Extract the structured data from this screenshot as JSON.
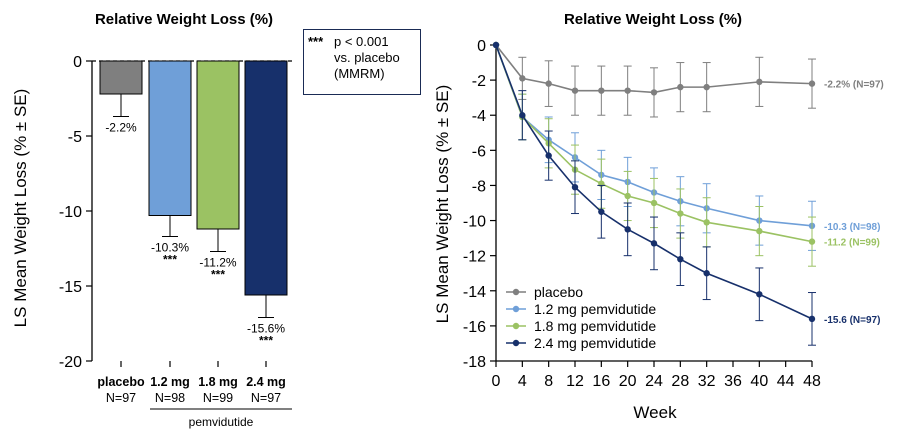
{
  "left_panel": {
    "sig_note": {
      "stars": "***",
      "lines": [
        "p < 0.001",
        "vs. placebo",
        "(MMRM)"
      ]
    },
    "group_label": "pemvidutide"
  },
  "chart_data": [
    {
      "type": "bar",
      "title": "Relative Weight Loss (%)",
      "ylabel": "LS Mean Weight Loss (% ± SE)",
      "ylim": [
        -20,
        0
      ],
      "yticks": [
        0,
        -5,
        -10,
        -15,
        -20
      ],
      "categories": [
        "placebo",
        "1.2 mg",
        "1.8 mg",
        "2.4 mg"
      ],
      "n_labels": [
        "N=97",
        "N=98",
        "N=99",
        "N=97"
      ],
      "values": [
        -2.2,
        -10.3,
        -11.2,
        -15.6
      ],
      "se": [
        1.5,
        1.4,
        1.5,
        1.5
      ],
      "value_labels": [
        "-2.2%",
        "-10.3%",
        "-11.2%",
        "-15.6%"
      ],
      "significance": [
        "",
        "***",
        "***",
        "***"
      ],
      "colors": [
        "#7f7f7f",
        "#6f9fd8",
        "#9bc263",
        "#17306b"
      ]
    },
    {
      "type": "line",
      "title": "Relative Weight Loss (%)",
      "xlabel": "Week",
      "ylabel": "LS Mean Weight Loss (% ± SE)",
      "xlim": [
        0,
        48
      ],
      "ylim": [
        -18,
        0
      ],
      "xticks": [
        0,
        4,
        8,
        12,
        16,
        20,
        24,
        28,
        32,
        36,
        40,
        44,
        48
      ],
      "yticks": [
        0,
        -2,
        -4,
        -6,
        -8,
        -10,
        -12,
        -14,
        -16,
        -18
      ],
      "legend_position": "bottom-left",
      "series": [
        {
          "name": "placebo",
          "color": "#7f7f7f",
          "x": [
            0,
            4,
            8,
            12,
            16,
            20,
            24,
            28,
            32,
            40,
            48
          ],
          "values": [
            0,
            -1.9,
            -2.2,
            -2.6,
            -2.6,
            -2.6,
            -2.7,
            -2.4,
            -2.4,
            -2.1,
            -2.2
          ],
          "se": [
            0,
            1.2,
            1.3,
            1.4,
            1.4,
            1.4,
            1.4,
            1.4,
            1.4,
            1.4,
            1.4
          ],
          "end_label": "-2.2% (N=97)"
        },
        {
          "name": "1.2 mg pemvidutide",
          "color": "#6f9fd8",
          "x": [
            0,
            4,
            8,
            12,
            16,
            20,
            24,
            28,
            32,
            40,
            48
          ],
          "values": [
            0,
            -4.1,
            -5.4,
            -6.4,
            -7.4,
            -7.8,
            -8.4,
            -8.9,
            -9.3,
            -10.0,
            -10.3
          ],
          "se": [
            0,
            1.3,
            1.3,
            1.4,
            1.4,
            1.4,
            1.4,
            1.4,
            1.4,
            1.4,
            1.4
          ],
          "end_label": "-10.3 (N=98)"
        },
        {
          "name": "1.8 mg pemvidutide",
          "color": "#9bc263",
          "x": [
            0,
            4,
            8,
            12,
            16,
            20,
            24,
            28,
            32,
            40,
            48
          ],
          "values": [
            0,
            -4.1,
            -5.6,
            -7.1,
            -7.9,
            -8.6,
            -9.0,
            -9.6,
            -10.1,
            -10.6,
            -11.2
          ],
          "se": [
            0,
            1.3,
            1.4,
            1.4,
            1.4,
            1.4,
            1.4,
            1.4,
            1.4,
            1.4,
            1.4
          ],
          "end_label": "-11.2 (N=99)"
        },
        {
          "name": "2.4 mg pemvidutide",
          "color": "#17306b",
          "x": [
            0,
            4,
            8,
            12,
            16,
            20,
            24,
            28,
            32,
            40,
            48
          ],
          "values": [
            0,
            -4.0,
            -6.3,
            -8.1,
            -9.5,
            -10.5,
            -11.3,
            -12.2,
            -13.0,
            -14.2,
            -15.6
          ],
          "se": [
            0,
            1.4,
            1.4,
            1.5,
            1.5,
            1.5,
            1.5,
            1.5,
            1.5,
            1.5,
            1.5
          ],
          "end_label": "-15.6 (N=97)"
        }
      ]
    }
  ]
}
